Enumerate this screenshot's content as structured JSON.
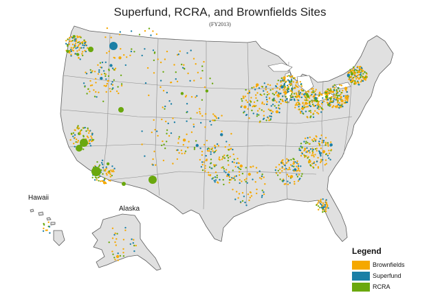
{
  "title": "Superfund, RCRA, and Brownfields Sites",
  "subtitle": "(FY2013)",
  "insets": {
    "hawaii": "Hawaii",
    "alaska": "Alaska"
  },
  "legend": {
    "title": "Legend",
    "items": [
      {
        "label": "Brownfields",
        "color": "#f5a800"
      },
      {
        "label": "Superfund",
        "color": "#1b7fa6"
      },
      {
        "label": "RCRA",
        "color": "#6aa80e"
      }
    ]
  },
  "colors": {
    "land": "#e0e0e0",
    "border": "#5a5a5a"
  }
}
